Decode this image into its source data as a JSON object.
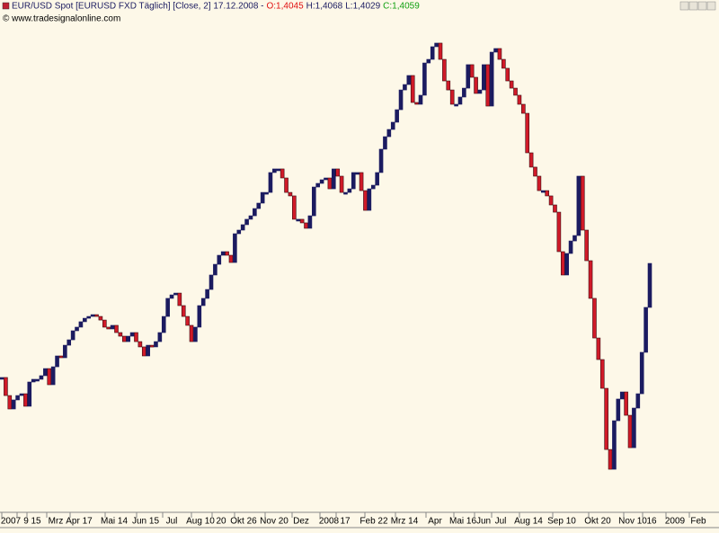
{
  "chart_data": {
    "type": "line_break",
    "title": "EUR/USD Spot [EURUSD FXD  Täglich] [Close, 2] 17.12.2008 -",
    "ohlc": {
      "open": "O:1,4045",
      "high": "H:1,4068",
      "low": "L:1,4029",
      "close": "C:1,4059"
    },
    "source": "© www.tradesignalonline.com",
    "up_color": "#1b1b60",
    "down_color": "#d01a28",
    "ylim": [
      1.19,
      1.64
    ],
    "x_labels": [
      "2007",
      "9",
      "15",
      "Mrz",
      "Apr 17",
      "Mai 14",
      "Jun 15",
      "Jul",
      "Aug 10",
      "20",
      "Okt 26",
      "Nov 20",
      "Dez",
      "2008",
      "17",
      "Feb 22",
      "Mrz 14",
      "Apr",
      "Mai 16",
      "Jun",
      "Jul",
      "Aug 14",
      "Sep 10",
      "Okt 20",
      "Nov 10",
      "16",
      "2009",
      "Feb"
    ],
    "values": [
      1.3055,
      1.2895,
      1.2776,
      1.2856,
      1.2895,
      1.2911,
      1.28,
      1.3015,
      1.3039,
      1.3039,
      1.3071,
      1.3134,
      1.2991,
      1.315,
      1.3246,
      1.323,
      1.3341,
      1.3389,
      1.3469,
      1.3501,
      1.3549,
      1.358,
      1.3596,
      1.3612,
      1.3596,
      1.3564,
      1.3501,
      1.3485,
      1.3517,
      1.3453,
      1.3421,
      1.3373,
      1.3421,
      1.3453,
      1.3373,
      1.3326,
      1.3246,
      1.3341,
      1.3326,
      1.3373,
      1.3453,
      1.3596,
      1.3756,
      1.3787,
      1.3803,
      1.3692,
      1.3596,
      1.3517,
      1.3373,
      1.3501,
      1.3692,
      1.3756,
      1.3835,
      1.3963,
      1.4058,
      1.4138,
      1.417,
      1.4138,
      1.4074,
      1.4329,
      1.4361,
      1.4409,
      1.4457,
      1.4488,
      1.4552,
      1.46,
      1.4695,
      1.4695,
      1.4871,
      1.4903,
      1.4903,
      1.4823,
      1.4695,
      1.4664,
      1.4457,
      1.4457,
      1.4425,
      1.4377,
      1.4488,
      1.4743,
      1.4775,
      1.4807,
      1.4823,
      1.4727,
      1.4903,
      1.4839,
      1.4695,
      1.4695,
      1.4727,
      1.4871,
      1.4871,
      1.4711,
      1.4536,
      1.4727,
      1.4759,
      1.4871,
      1.5078,
      1.5189,
      1.5253,
      1.5317,
      1.5428,
      1.5603,
      1.5651,
      1.5731,
      1.5492,
      1.5476,
      1.5556,
      1.5842,
      1.5874,
      1.5986,
      1.6018,
      1.5874,
      1.5683,
      1.5603,
      1.5476,
      1.5476,
      1.554,
      1.5619,
      1.5827,
      1.5715,
      1.5572,
      1.5603,
      1.5827,
      1.546,
      1.5938,
      1.597,
      1.5874,
      1.5795,
      1.5683,
      1.5619,
      1.5556,
      1.5476,
      1.5396,
      1.5046,
      1.4919,
      1.4839,
      1.4711,
      1.4711,
      1.4664,
      1.4584,
      1.452,
      1.417,
      1.3963,
      1.4154,
      1.4265,
      1.4313,
      1.4839,
      1.4361,
      1.409,
      1.3756,
      1.3405,
      1.3214,
      1.2959,
      1.2417,
      1.2242,
      1.2672,
      1.2864,
      1.2927,
      1.272,
      1.2433,
      1.2784,
      1.2911,
      1.3278,
      1.3676,
      1.4066
    ]
  }
}
